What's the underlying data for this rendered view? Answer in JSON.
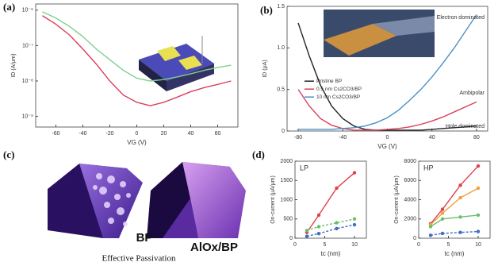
{
  "chart_data": [
    {
      "type": "line",
      "panel_label": "(a)",
      "x_label": "VG (V)",
      "y_label": "ID (A/μm)",
      "log_y": true,
      "x": [
        -70,
        -60,
        -50,
        -40,
        -30,
        -20,
        -10,
        0,
        10,
        20,
        30,
        40,
        50,
        60,
        70
      ],
      "xlim": [
        -75,
        75
      ],
      "xticks": [
        -60,
        -40,
        -20,
        0,
        20,
        40,
        60
      ],
      "ylim": [
        5e-10,
        1.5e-06
      ],
      "yticks": [
        {
          "value": 1e-06,
          "label": "10⁻⁶"
        },
        {
          "value": 1e-07,
          "label": "10⁻⁷"
        },
        {
          "value": 1e-08,
          "label": "10⁻⁸"
        },
        {
          "value": 1e-09,
          "label": "10⁻⁹"
        }
      ],
      "series": [
        {
          "color": "#7fcf8f",
          "values": [
            9e-07,
            6e-07,
            3.5e-07,
            1.8e-07,
            8e-08,
            4e-08,
            2e-08,
            1.2e-08,
            1e-08,
            1.1e-08,
            1.3e-08,
            1.6e-08,
            2e-08,
            2.4e-08,
            2.8e-08
          ]
        },
        {
          "color": "#d9405a",
          "values": [
            7e-07,
            4e-07,
            2e-07,
            8e-08,
            3e-08,
            1e-08,
            4e-09,
            2.5e-09,
            2e-09,
            2.5e-09,
            3.5e-09,
            5e-09,
            6.5e-09,
            8e-09,
            1e-08
          ]
        }
      ]
    },
    {
      "type": "line",
      "panel_label": "(b)",
      "x_label": "VG (V)",
      "y_label": "ID (μA)",
      "log_y": false,
      "x": [
        -80,
        -70,
        -60,
        -50,
        -40,
        -30,
        -20,
        -10,
        0,
        10,
        20,
        30,
        40,
        50,
        60,
        70,
        80
      ],
      "xlim": [
        -90,
        90
      ],
      "xticks": [
        -80,
        -40,
        0,
        40,
        80
      ],
      "ylim": [
        0,
        1.5
      ],
      "yticks": [
        0,
        0.5,
        {
          "value": 1.0,
          "label": "1.0"
        },
        1.5
      ],
      "legend": "center left",
      "annotations": [
        "Electron dominated",
        "Ambipolar",
        "Hole dominated"
      ],
      "series": [
        {
          "name": "Pristine BP",
          "color": "#222222",
          "values": [
            1.3,
            0.9,
            0.55,
            0.3,
            0.15,
            0.06,
            0.02,
            0.01,
            0.01,
            0.01,
            0.01,
            0.01,
            0.02,
            0.03,
            0.04,
            0.05,
            0.06
          ]
        },
        {
          "name": "0.5 nm Cs2CO3/BP",
          "color": "#d9405a",
          "values": [
            0.5,
            0.3,
            0.15,
            0.07,
            0.03,
            0.01,
            0.01,
            0.01,
            0.02,
            0.03,
            0.05,
            0.08,
            0.12,
            0.17,
            0.23,
            0.29,
            0.35
          ]
        },
        {
          "name": "10 nm Cs2CO3/BP",
          "color": "#4a90c8",
          "values": [
            0.02,
            0.02,
            0.02,
            0.02,
            0.03,
            0.04,
            0.06,
            0.1,
            0.16,
            0.25,
            0.37,
            0.5,
            0.65,
            0.82,
            1.0,
            1.2,
            1.4
          ]
        }
      ]
    },
    {
      "type": "line",
      "panel_label": "(d)",
      "title": "LP",
      "x_label": "tc (nm)",
      "y_label": "On-current (μA/μm)",
      "log_y": false,
      "markers": true,
      "x": [
        2,
        4,
        7,
        10
      ],
      "xlim": [
        0,
        12
      ],
      "xticks": [
        0,
        5,
        10
      ],
      "ylim": [
        0,
        2000
      ],
      "yticks": [
        0,
        500,
        1000,
        1500,
        2000
      ],
      "series": [
        {
          "color": "#e0404a",
          "values": [
            150,
            600,
            1300,
            1700
          ]
        },
        {
          "color": "#3b6fc4",
          "values": [
            50,
            120,
            250,
            350
          ],
          "dashed": true
        },
        {
          "color": "#6bbf6b",
          "values": [
            200,
            300,
            400,
            500
          ],
          "dashed": true
        }
      ]
    },
    {
      "type": "line",
      "title": "HP",
      "x_label": "tc (nm)",
      "y_label": "On-current (μA/μm)",
      "log_y": false,
      "markers": true,
      "x": [
        2,
        4,
        7,
        10
      ],
      "xlim": [
        0,
        12
      ],
      "xticks": [
        0,
        5,
        10
      ],
      "ylim": [
        0,
        8000
      ],
      "yticks": [
        0,
        2000,
        4000,
        6000,
        8000
      ],
      "series": [
        {
          "color": "#e0404a",
          "values": [
            1500,
            3000,
            5500,
            7500
          ]
        },
        {
          "color": "#f0a040",
          "values": [
            1400,
            2600,
            4200,
            5200
          ]
        },
        {
          "color": "#6bbf6b",
          "values": [
            1200,
            2000,
            2200,
            2400
          ]
        },
        {
          "color": "#3b6fc4",
          "values": [
            300,
            500,
            600,
            700
          ],
          "dashed": true
        }
      ]
    }
  ],
  "panel_c": {
    "panel_label": "(c)",
    "labels": [
      "BP",
      "AlOx/BP"
    ],
    "caption": "Effective Passivation"
  }
}
